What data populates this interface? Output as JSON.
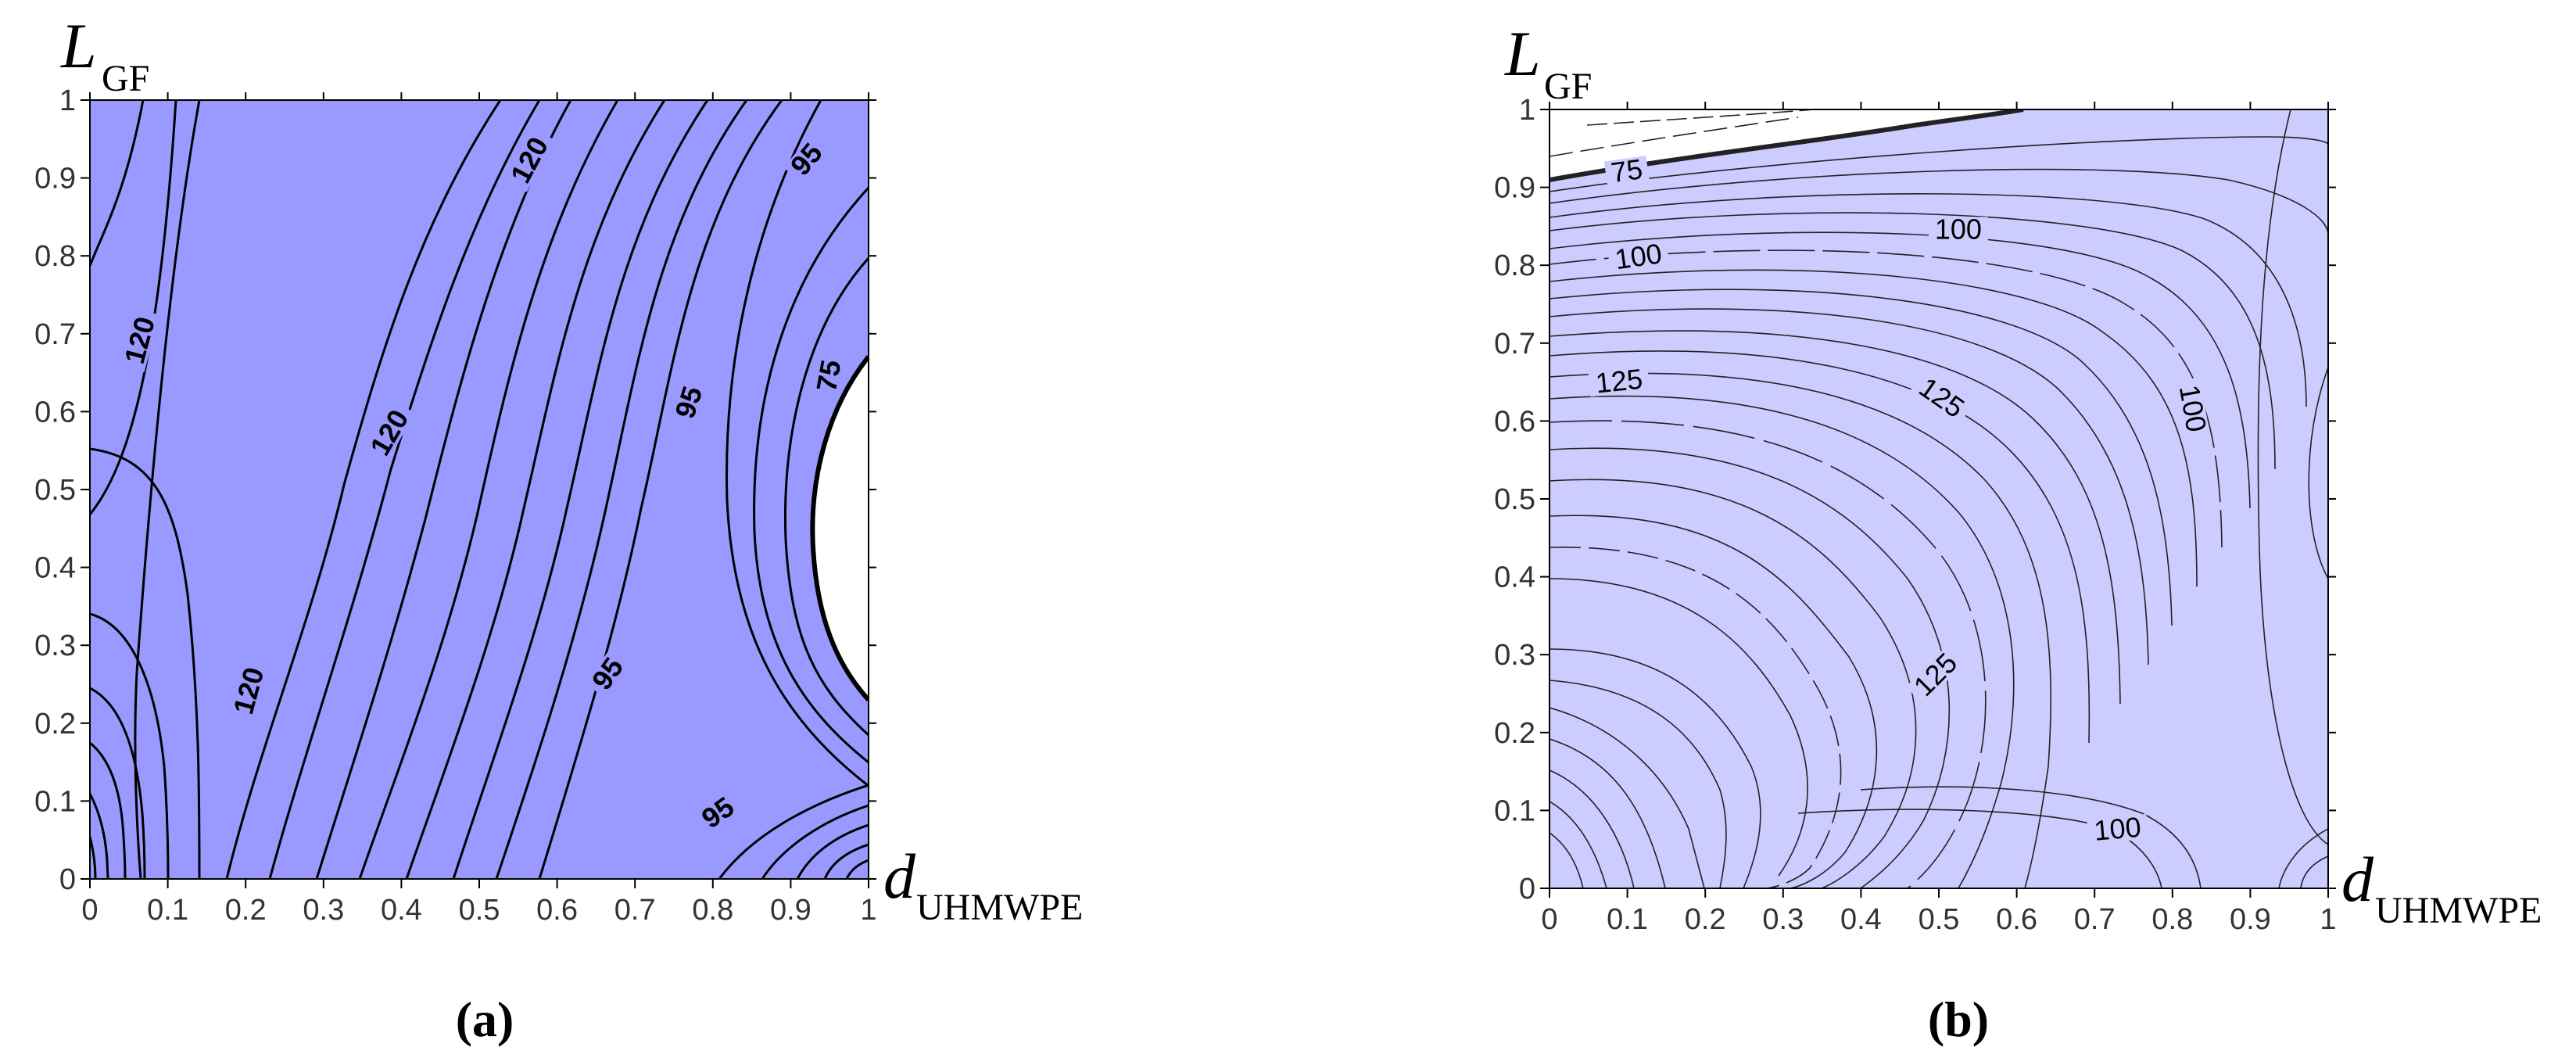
{
  "chart_data": [
    {
      "type": "contour",
      "panel_label": "(a)",
      "xlabel": {
        "main": "d",
        "sub": "UHMWPE"
      },
      "ylabel": {
        "main": "L",
        "sub": "GF"
      },
      "xlim": [
        0,
        1
      ],
      "ylim": [
        0,
        1
      ],
      "xticks": [
        "0",
        "0.1",
        "0.2",
        "0.3",
        "0.4",
        "0.5",
        "0.6",
        "0.7",
        "0.8",
        "0.9",
        "1"
      ],
      "yticks": [
        "0",
        "0.1",
        "0.2",
        "0.3",
        "0.4",
        "0.5",
        "0.6",
        "0.7",
        "0.8",
        "0.9",
        "1"
      ],
      "fill_color": "#9999ff",
      "low_region_color": "#ffffff",
      "contour_labels": [
        {
          "text": "120",
          "x": 0.07,
          "y": 0.69,
          "angle": -75
        },
        {
          "text": "120",
          "x": 0.57,
          "y": 0.92,
          "angle": -62
        },
        {
          "text": "120",
          "x": 0.39,
          "y": 0.57,
          "angle": -60
        },
        {
          "text": "120",
          "x": 0.21,
          "y": 0.24,
          "angle": -75
        },
        {
          "text": "95",
          "x": 0.925,
          "y": 0.92,
          "angle": -50
        },
        {
          "text": "95",
          "x": 0.775,
          "y": 0.61,
          "angle": -72
        },
        {
          "text": "95",
          "x": 0.67,
          "y": 0.26,
          "angle": -55
        },
        {
          "text": "95",
          "x": 0.81,
          "y": 0.08,
          "angle": -35
        },
        {
          "text": "75",
          "x": 0.955,
          "y": 0.645,
          "angle": -80
        }
      ]
    },
    {
      "type": "contour",
      "panel_label": "(b)",
      "xlabel": {
        "main": "d",
        "sub": "UHMWPE"
      },
      "ylabel": {
        "main": "L",
        "sub": "GF"
      },
      "xlim": [
        0,
        1
      ],
      "ylim": [
        0,
        1
      ],
      "xticks": [
        "0",
        "0.1",
        "0.2",
        "0.3",
        "0.4",
        "0.5",
        "0.6",
        "0.7",
        "0.8",
        "0.9",
        "1"
      ],
      "yticks": [
        "0",
        "0.1",
        "0.2",
        "0.3",
        "0.4",
        "0.5",
        "0.6",
        "0.7",
        "0.8",
        "0.9",
        "1"
      ],
      "fill_color": "#ccccff",
      "low_region_color": "#ffffff",
      "contour_labels": [
        {
          "text": "75",
          "x": 0.1,
          "y": 0.915,
          "angle": -8
        },
        {
          "text": "100",
          "x": 0.115,
          "y": 0.805,
          "angle": -8
        },
        {
          "text": "100",
          "x": 0.525,
          "y": 0.84,
          "angle": 0
        },
        {
          "text": "125",
          "x": 0.09,
          "y": 0.645,
          "angle": -6
        },
        {
          "text": "125",
          "x": 0.5,
          "y": 0.625,
          "angle": 35
        },
        {
          "text": "100",
          "x": 0.82,
          "y": 0.615,
          "angle": 80
        },
        {
          "text": "125",
          "x": 0.5,
          "y": 0.27,
          "angle": -45
        },
        {
          "text": "100",
          "x": 0.73,
          "y": 0.07,
          "angle": -5
        }
      ]
    }
  ]
}
